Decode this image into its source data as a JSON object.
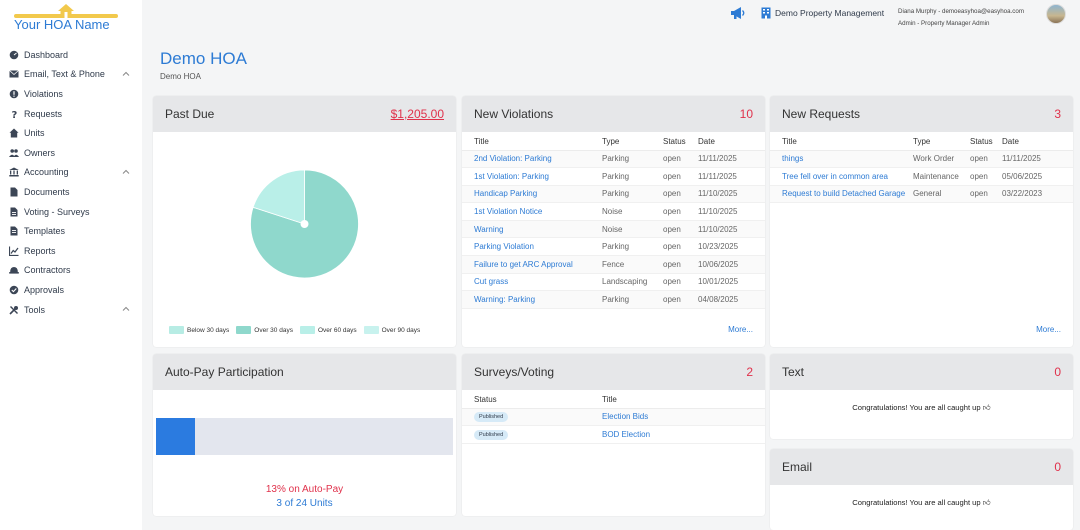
{
  "brand": {
    "logo_text": "Your HOA Name"
  },
  "sidebar": {
    "items": [
      {
        "label": "Dashboard",
        "icon": "gauge-icon"
      },
      {
        "label": "Email, Text & Phone",
        "icon": "envelope-icon",
        "expandable": true
      },
      {
        "label": "Violations",
        "icon": "exclamation-circle-icon"
      },
      {
        "label": "Requests",
        "icon": "question-icon"
      },
      {
        "label": "Units",
        "icon": "home-icon"
      },
      {
        "label": "Owners",
        "icon": "users-icon"
      },
      {
        "label": "Accounting",
        "icon": "bank-icon",
        "expandable": true
      },
      {
        "label": "Documents",
        "icon": "file-icon"
      },
      {
        "label": "Voting - Surveys",
        "icon": "ballot-icon"
      },
      {
        "label": "Templates",
        "icon": "file-template-icon"
      },
      {
        "label": "Reports",
        "icon": "chart-line-icon"
      },
      {
        "label": "Contractors",
        "icon": "hard-hat-icon"
      },
      {
        "label": "Approvals",
        "icon": "check-circle-icon"
      },
      {
        "label": "Tools",
        "icon": "tools-icon",
        "expandable": true
      }
    ]
  },
  "header": {
    "company": "Demo Property Management",
    "user_line1": "Diana Murphy - demoeasyhoa@easyhoa.com",
    "user_line2": "Admin - Property Manager Admin"
  },
  "page": {
    "title": "Demo HOA",
    "subtitle": "Demo HOA"
  },
  "past_due": {
    "title": "Past Due",
    "amount": "$1,205.00",
    "chart_data": {
      "type": "pie",
      "categories": [
        "Below 30 days",
        "Over 30 days",
        "Over 60 days",
        "Over 90 days"
      ],
      "values": [
        0,
        80,
        20,
        0
      ],
      "colors": [
        "#b7ece4",
        "#8fd8cc",
        "#b9efe8",
        "#c8f2ee"
      ]
    }
  },
  "violations": {
    "title": "New Violations",
    "count": "10",
    "columns": [
      "Title",
      "Type",
      "Status",
      "Date"
    ],
    "rows": [
      [
        "2nd Violation: Parking",
        "Parking",
        "open",
        "11/11/2025"
      ],
      [
        "1st Violation: Parking",
        "Parking",
        "open",
        "11/11/2025"
      ],
      [
        "Handicap Parking",
        "Parking",
        "open",
        "11/10/2025"
      ],
      [
        "1st Violation Notice",
        "Noise",
        "open",
        "11/10/2025"
      ],
      [
        "Warning",
        "Noise",
        "open",
        "11/10/2025"
      ],
      [
        "Parking Violation",
        "Parking",
        "open",
        "10/23/2025"
      ],
      [
        "Failure to get ARC Approval",
        "Fence",
        "open",
        "10/06/2025"
      ],
      [
        "Cut grass",
        "Landscaping",
        "open",
        "10/01/2025"
      ],
      [
        "Warning: Parking",
        "Parking",
        "open",
        "04/08/2025"
      ]
    ],
    "more": "More..."
  },
  "requests": {
    "title": "New Requests",
    "count": "3",
    "columns": [
      "Title",
      "Type",
      "Status",
      "Date"
    ],
    "rows": [
      [
        "things",
        "Work Order",
        "open",
        "11/11/2025"
      ],
      [
        "Tree fell over in common area",
        "Maintenance",
        "open",
        "05/06/2025"
      ],
      [
        "Request to build Detached Garage",
        "General",
        "open",
        "03/22/2023"
      ]
    ],
    "more": "More..."
  },
  "autopay": {
    "title": "Auto-Pay Participation",
    "percent_text": "13% on Auto-Pay",
    "units_text": "3 of 24 Units",
    "fraction": 0.13
  },
  "surveys": {
    "title": "Surveys/Voting",
    "count": "2",
    "columns": [
      "Status",
      "Title"
    ],
    "rows": [
      [
        "Published",
        "Election Bids"
      ],
      [
        "Published",
        "BOD Election"
      ]
    ]
  },
  "text_card": {
    "title": "Text",
    "count": "0",
    "message": "Congratulations! You are all caught up"
  },
  "email_card": {
    "title": "Email",
    "count": "0",
    "message": "Congratulations! You are all caught up"
  }
}
